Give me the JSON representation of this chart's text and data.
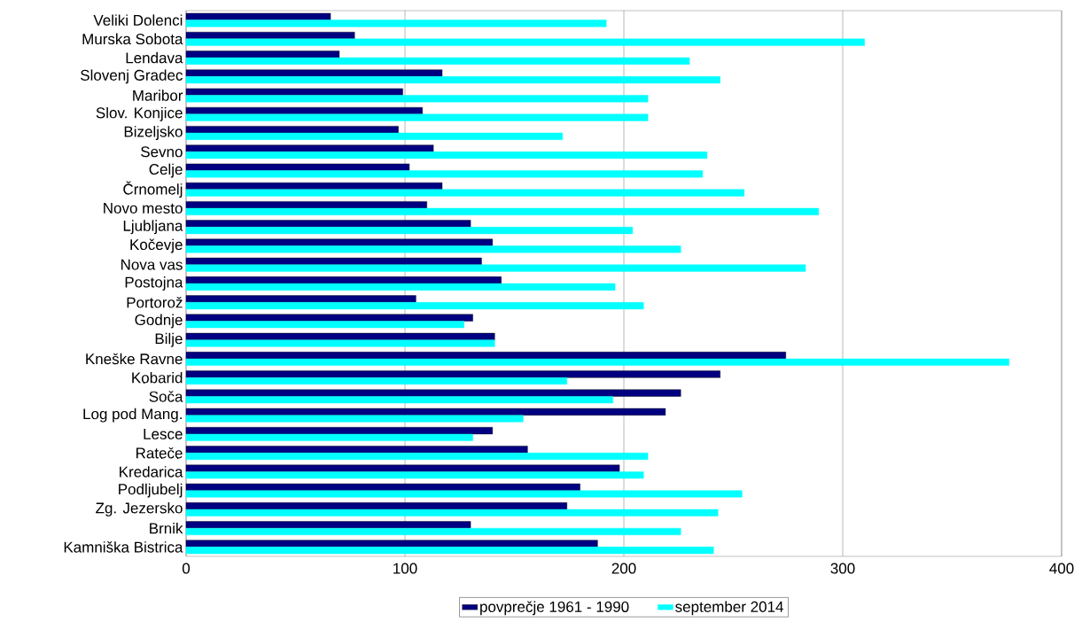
{
  "chart_data": {
    "type": "bar",
    "orientation": "horizontal",
    "categories": [
      "Veliki Dolenci",
      "Murska Sobota",
      "Lendava",
      "Slovenj Gradec",
      "Maribor",
      "Slov. Konjice",
      "Bizeljsko",
      "Sevno",
      "Celje",
      "Črnomelj",
      "Novo mesto",
      "Ljubljana",
      "Kočevje",
      "Nova vas",
      "Postojna",
      "Portorož",
      "Godnje",
      "Bilje",
      "Kneške Ravne",
      "Kobarid",
      "Soča",
      "Log pod Mang.",
      "Lesce",
      "Rateče",
      "Kredarica",
      "Podljubelj",
      "Zg. Jezersko",
      "Brnik",
      "Kamniška Bistrica"
    ],
    "series": [
      {
        "name": "povprečje 1961 - 1990",
        "color": "#000080",
        "values": [
          66,
          77,
          70,
          117,
          99,
          108,
          97,
          113,
          102,
          117,
          110,
          130,
          140,
          135,
          144,
          105,
          131,
          141,
          274,
          244,
          226,
          219,
          140,
          156,
          198,
          180,
          174,
          130,
          188
        ]
      },
      {
        "name": "september 2014",
        "color": "#00ffff",
        "values": [
          192,
          310,
          230,
          244,
          211,
          211,
          172,
          238,
          236,
          255,
          289,
          204,
          226,
          283,
          196,
          209,
          127,
          141,
          376,
          174,
          195,
          154,
          131,
          211,
          209,
          254,
          243,
          226,
          241
        ]
      }
    ],
    "xlim": [
      0,
      400
    ],
    "xticks": [
      0,
      100,
      200,
      300,
      400
    ],
    "grid": "x",
    "legend": "bottom"
  }
}
